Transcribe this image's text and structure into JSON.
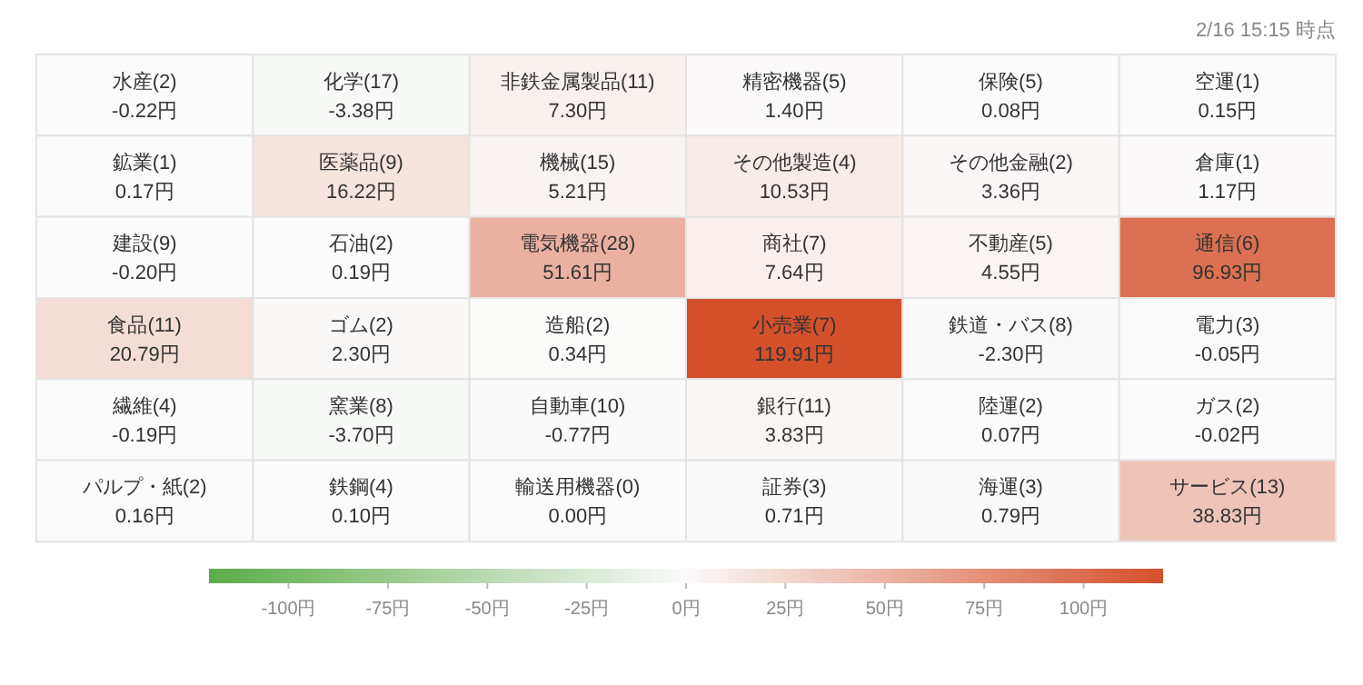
{
  "chart_data": {
    "type": "heatmap",
    "annotations": [
      "2/16 15:15 時点"
    ],
    "categories": [
      null,
      null,
      null,
      null,
      null,
      null
    ],
    "y_categories": [
      null,
      null,
      null,
      null,
      null,
      null
    ],
    "cells": [
      [
        -0.22,
        -3.38,
        7.3,
        1.4,
        0.08,
        0.15
      ],
      [
        0.17,
        16.22,
        5.21,
        10.53,
        3.36,
        1.17
      ],
      [
        -0.2,
        0.19,
        51.61,
        7.64,
        4.55,
        96.93
      ],
      [
        20.79,
        2.3,
        0.34,
        119.91,
        -2.3,
        -0.05
      ],
      [
        -0.19,
        -3.7,
        -0.77,
        3.83,
        0.07,
        -0.02
      ],
      [
        0.16,
        0.1,
        0.0,
        0.71,
        0.79,
        38.83
      ]
    ],
    "cell_labels": [
      [
        "水産(2)\n-0.22円",
        "化学(17)\n-3.38円",
        "非鉄金属製品(11)\n7.30円",
        "精密機器(5)\n1.40円",
        "保険(5)\n0.08円",
        "空運(1)\n0.15円"
      ],
      [
        "鉱業(1)\n0.17円",
        "医薬品(9)\n16.22円",
        "機械(15)\n5.21円",
        "その他製造(4)\n10.53円",
        "その他金融(2)\n3.36円",
        "倉庫(1)\n1.17円"
      ],
      [
        "建設(9)\n-0.20円",
        "石油(2)\n0.19円",
        "電気機器(28)\n51.61円",
        "商社(7)\n7.64円",
        "不動産(5)\n4.55円",
        "通信(6)\n96.93円"
      ],
      [
        "食品(11)\n20.79円",
        "ゴム(2)\n2.30円",
        "造船(2)\n0.34円",
        "小売業(7)\n119.91円",
        "鉄道・バス(8)\n-2.30円",
        "電力(3)\n-0.05円"
      ],
      [
        "繊維(4)\n-0.19円",
        "窯業(8)\n-3.70円",
        "自動車(10)\n-0.77円",
        "銀行(11)\n3.83円",
        "陸運(2)\n0.07円",
        "ガス(2)\n-0.02円"
      ],
      [
        "パルプ・紙(2)\n0.16円",
        "鉄鋼(4)\n0.10円",
        "輸送用機器(0)\n0.00円",
        "証券(3)\n0.71円",
        "海運(3)\n0.79円",
        "サービス(13)\n38.83円"
      ]
    ],
    "clim": [
      -120,
      120
    ],
    "cticks": [
      {
        "value": -100,
        "label": "-100円"
      },
      {
        "value": -75,
        "label": "-75円"
      },
      {
        "value": -50,
        "label": "-50円"
      },
      {
        "value": -25,
        "label": "-25円"
      },
      {
        "value": 0,
        "label": "0円"
      },
      {
        "value": 25,
        "label": "25円"
      },
      {
        "value": 50,
        "label": "50円"
      },
      {
        "value": 75,
        "label": "75円"
      },
      {
        "value": 100,
        "label": "100円"
      }
    ]
  }
}
